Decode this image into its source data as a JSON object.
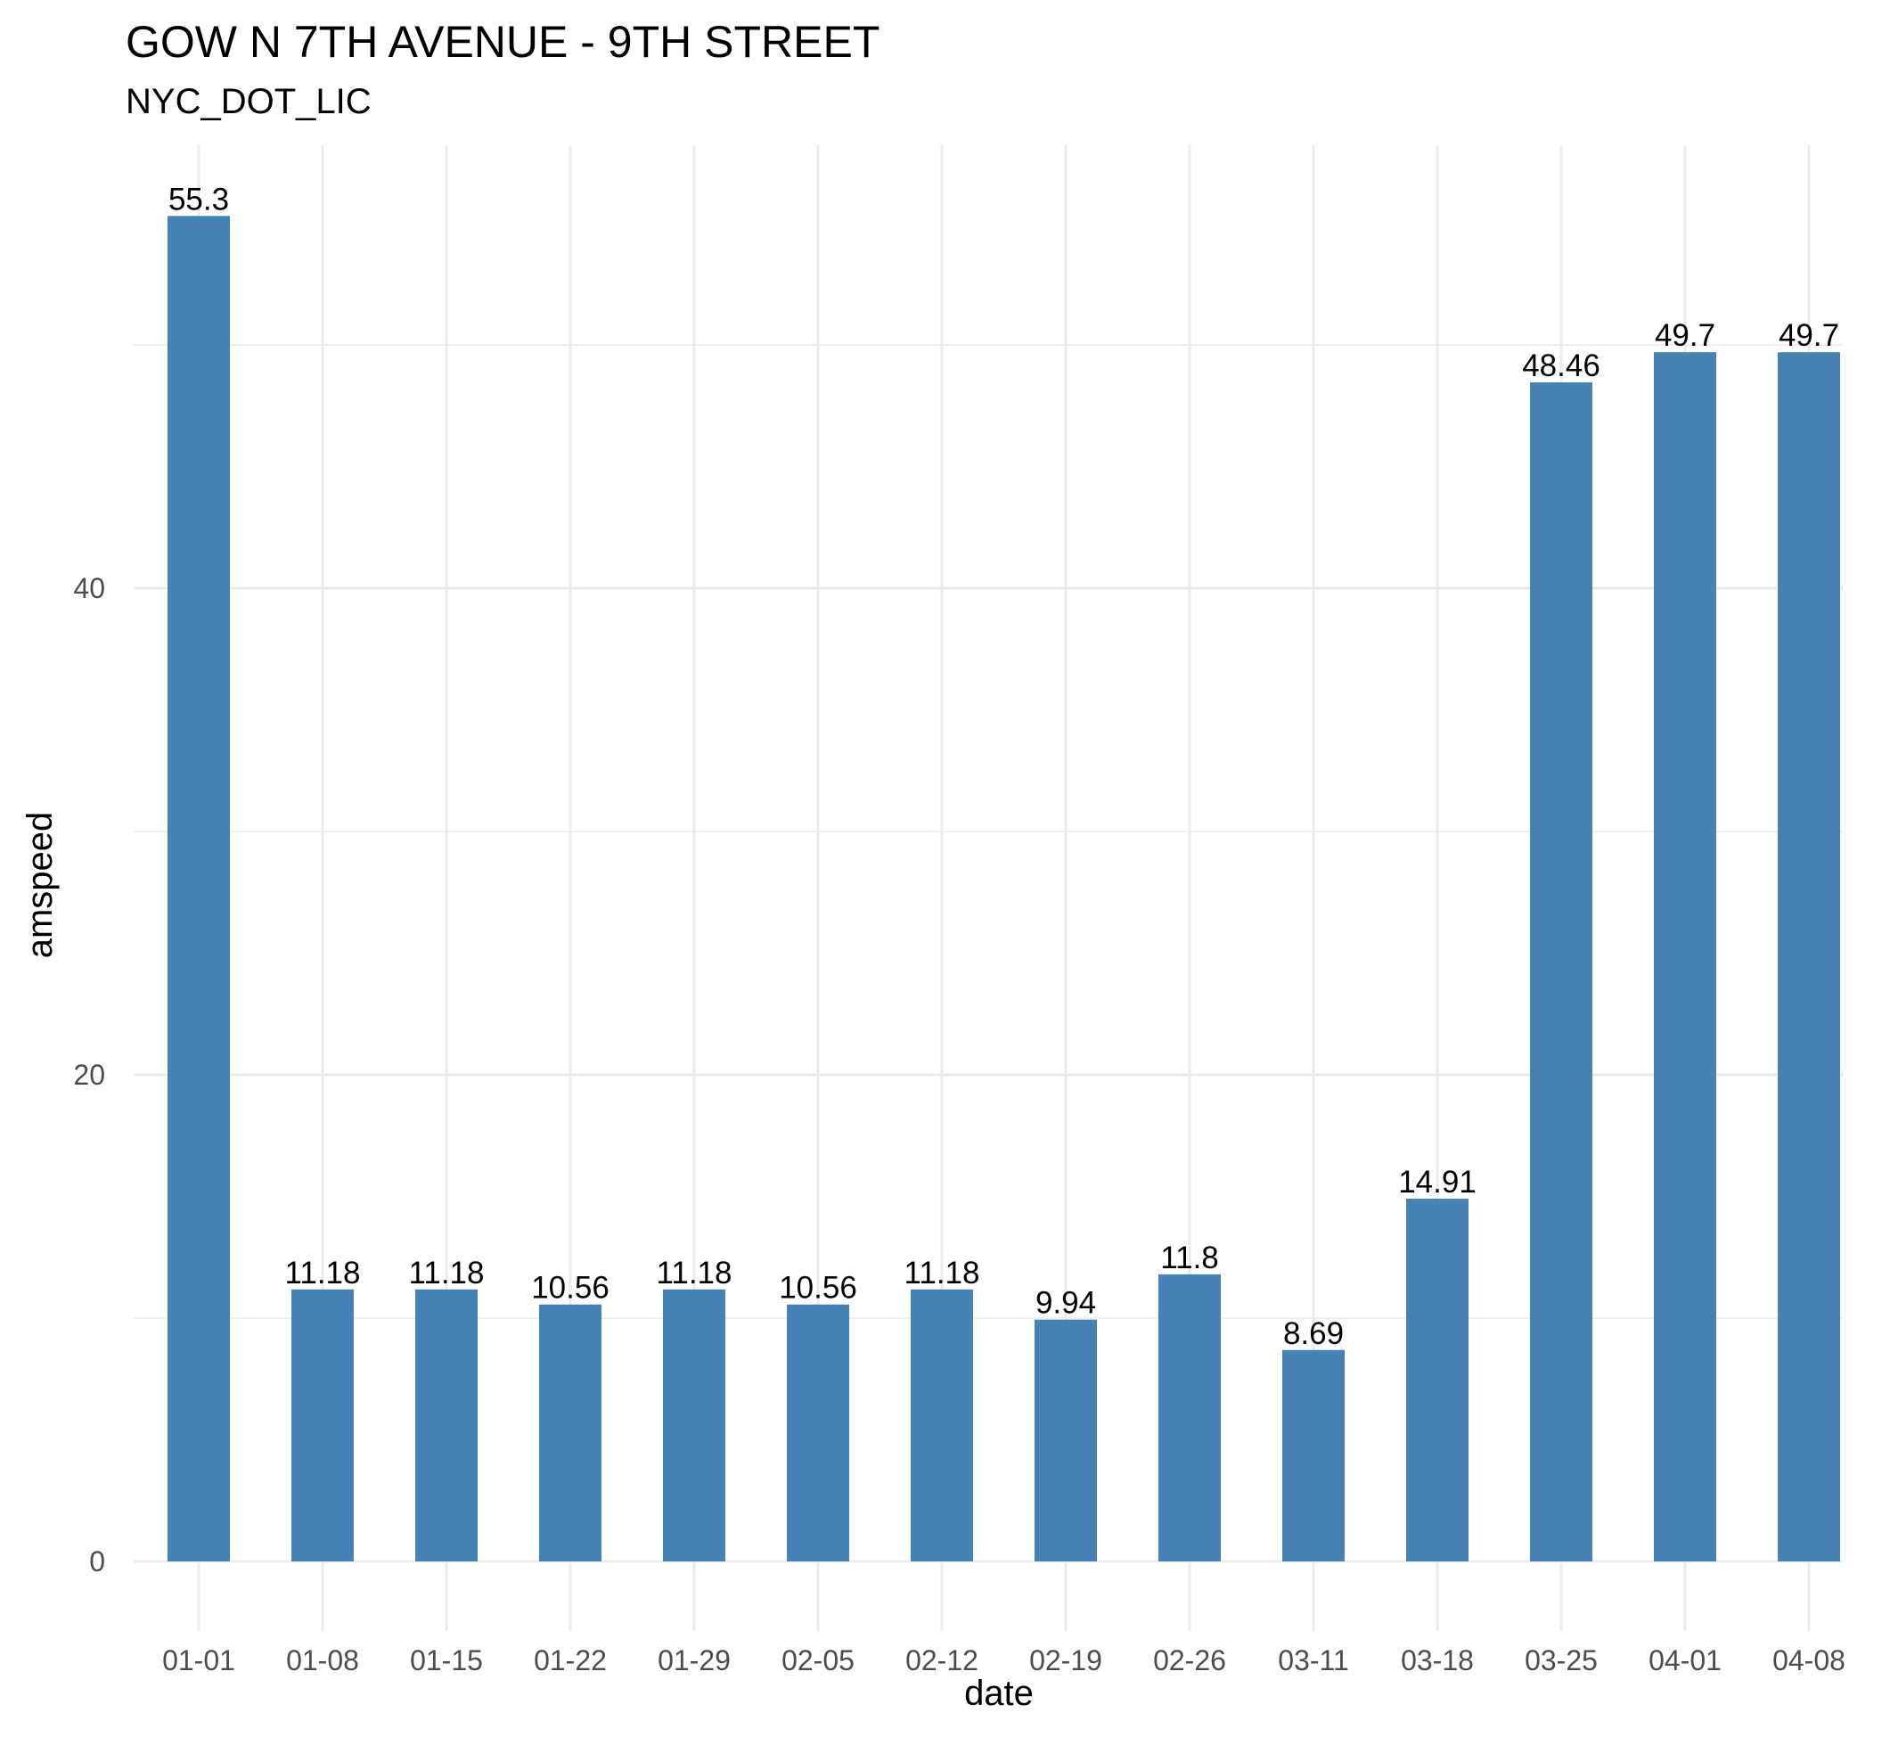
{
  "chart_data": {
    "type": "bar",
    "title": "GOW N 7TH AVENUE - 9TH STREET",
    "subtitle": "NYC_DOT_LIC",
    "xlabel": "date",
    "ylabel": "amspeed",
    "categories": [
      "01-01",
      "01-08",
      "01-15",
      "01-22",
      "01-29",
      "02-05",
      "02-12",
      "02-19",
      "02-26",
      "03-11",
      "03-18",
      "03-25",
      "04-01",
      "04-08"
    ],
    "values": [
      55.3,
      11.18,
      11.18,
      10.56,
      11.18,
      10.56,
      11.18,
      9.94,
      11.8,
      8.69,
      14.91,
      48.46,
      49.7,
      49.7
    ],
    "data_labels": [
      "55.3",
      "11.18",
      "11.18",
      "10.56",
      "11.18",
      "10.56",
      "11.18",
      "9.94",
      "11.8",
      "8.69",
      "14.91",
      "48.46",
      "49.7",
      "49.7"
    ],
    "yticks": [
      0,
      20,
      40
    ],
    "ytick_labels": [
      "0",
      "20",
      "40"
    ],
    "ylim": [
      0,
      58
    ],
    "grid": true,
    "legend": "none",
    "bar_color": "#4682B4",
    "grid_color": "#EBEBEB"
  }
}
